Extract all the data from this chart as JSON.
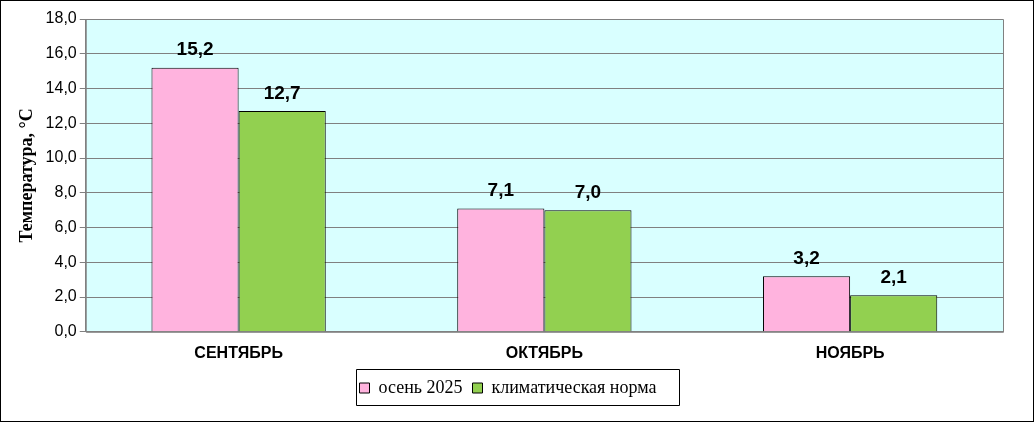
{
  "chart_data": {
    "type": "bar",
    "ylabel": "Температура, °С",
    "categories": [
      "СЕНТЯБРЬ",
      "ОКТЯБРЬ",
      "НОЯБРЬ"
    ],
    "series": [
      {
        "name": "осень 2025",
        "color": "#ffb3de",
        "values": [
          15.2,
          7.1,
          3.2
        ],
        "value_labels": [
          "15,2",
          "7,1",
          "3,2"
        ]
      },
      {
        "name": "климатическая норма",
        "color": "#92d050",
        "values": [
          12.7,
          7.0,
          2.1
        ],
        "value_labels": [
          "12,7",
          "7,0",
          "2,1"
        ]
      }
    ],
    "ylim": [
      0,
      18
    ],
    "yticks": [
      {
        "value": 0,
        "label": "0,0"
      },
      {
        "value": 2,
        "label": "2,0"
      },
      {
        "value": 4,
        "label": "4,0"
      },
      {
        "value": 6,
        "label": "6,0"
      },
      {
        "value": 8,
        "label": "8,0"
      },
      {
        "value": 10,
        "label": "10,0"
      },
      {
        "value": 12,
        "label": "12,0"
      },
      {
        "value": 14,
        "label": "14,0"
      },
      {
        "value": 16,
        "label": "16,0"
      },
      {
        "value": 18,
        "label": "18,0"
      }
    ],
    "grid": "y",
    "legend": "bottom"
  }
}
